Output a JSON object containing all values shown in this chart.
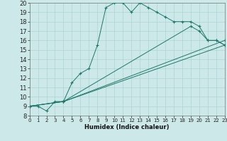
{
  "xlabel": "Humidex (Indice chaleur)",
  "bg_color": "#cce8e8",
  "line_color": "#1e7868",
  "grid_color": "#aad4d4",
  "xlim": [
    0,
    23
  ],
  "ylim": [
    8,
    20
  ],
  "xticks": [
    0,
    1,
    2,
    3,
    4,
    5,
    6,
    7,
    8,
    9,
    10,
    11,
    12,
    13,
    14,
    15,
    16,
    17,
    18,
    19,
    20,
    21,
    22,
    23
  ],
  "yticks": [
    8,
    9,
    10,
    11,
    12,
    13,
    14,
    15,
    16,
    17,
    18,
    19,
    20
  ],
  "series": [
    {
      "x": [
        0,
        1,
        2,
        3,
        4,
        5,
        6,
        7,
        8,
        9,
        10,
        11,
        12,
        13,
        14,
        15,
        16,
        17,
        18,
        19,
        20,
        21,
        22,
        23
      ],
      "y": [
        9,
        9,
        8.5,
        9.5,
        9.5,
        11.5,
        12.5,
        13,
        15.5,
        19.5,
        20,
        20,
        19,
        20,
        19.5,
        19,
        18.5,
        18,
        18,
        18,
        17.5,
        16,
        16,
        15.5
      ]
    },
    {
      "x": [
        0,
        4,
        23
      ],
      "y": [
        9,
        9.5,
        15.5
      ]
    },
    {
      "x": [
        0,
        4,
        23
      ],
      "y": [
        9,
        9.5,
        16
      ]
    },
    {
      "x": [
        0,
        4,
        19,
        20,
        21,
        22,
        23
      ],
      "y": [
        9,
        9.5,
        17.5,
        17,
        16,
        16,
        15.5
      ]
    }
  ]
}
